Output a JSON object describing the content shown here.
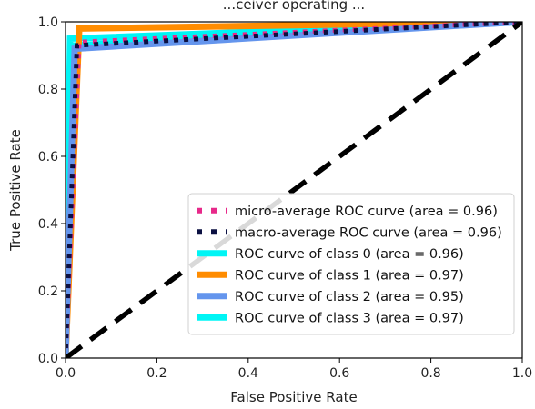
{
  "chart_data": {
    "type": "line",
    "title": "...ceiver operating ...",
    "xlabel": "False Positive Rate",
    "ylabel": "True Positive Rate",
    "xlim": [
      0.0,
      1.0
    ],
    "ylim": [
      0.0,
      1.0
    ],
    "xticks": [
      "0.0",
      "0.2",
      "0.4",
      "0.6",
      "0.8",
      "1.0"
    ],
    "yticks": [
      "0.0",
      "0.2",
      "0.4",
      "0.6",
      "0.8",
      "1.0"
    ],
    "xtick_values": [
      0.0,
      0.2,
      0.4,
      0.6,
      0.8,
      1.0
    ],
    "ytick_values": [
      0.0,
      0.2,
      0.4,
      0.6,
      0.8,
      1.0
    ],
    "grid": false,
    "legend_position": "bottom-right",
    "series": [
      {
        "name": "micro-average ROC curve (area = 0.96)",
        "color": "#e7298a",
        "style": "dotted",
        "x": [
          0.0,
          0.03,
          1.0
        ],
        "y": [
          0.0,
          0.94,
          1.0
        ]
      },
      {
        "name": "macro-average ROC curve (area = 0.96)",
        "color": "#0b1042",
        "style": "dotted",
        "x": [
          0.0,
          0.025,
          1.0
        ],
        "y": [
          0.0,
          0.93,
          1.0
        ]
      },
      {
        "name": "ROC curve of class 0 (area = 0.96)",
        "color": "#00f5f5",
        "style": "solid",
        "x": [
          0.0,
          0.02,
          1.0
        ],
        "y": [
          0.0,
          0.93,
          1.0
        ]
      },
      {
        "name": "ROC curve of class 1 (area = 0.97)",
        "color": "#ff8c00",
        "style": "solid",
        "x": [
          0.0,
          0.03,
          1.0
        ],
        "y": [
          0.0,
          0.98,
          1.0
        ]
      },
      {
        "name": "ROC curve of class 2 (area = 0.95)",
        "color": "#6495ed",
        "style": "solid",
        "x": [
          0.0,
          0.02,
          1.0
        ],
        "y": [
          0.0,
          0.92,
          1.0
        ]
      },
      {
        "name": "ROC curve of class 3 (area = 0.97)",
        "color": "#00f5f5",
        "style": "solid",
        "x": [
          0.0,
          0.01,
          1.0
        ],
        "y": [
          0.0,
          0.95,
          1.0
        ]
      }
    ],
    "diagonal": {
      "color": "#000000",
      "style": "dashed",
      "x": [
        0.0,
        1.0
      ],
      "y": [
        0.0,
        1.0
      ]
    }
  }
}
